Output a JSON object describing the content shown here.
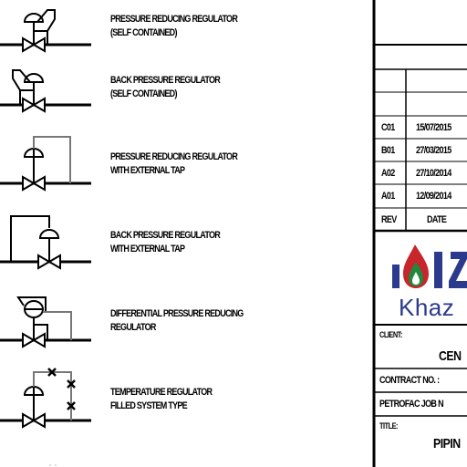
{
  "legend": {
    "items": [
      {
        "label": "PRESSURE REDUCING REGULATOR\n(SELF CONTAINED)"
      },
      {
        "label": "BACK PRESSURE REGULATOR\n(SELF CONTAINED)"
      },
      {
        "label": "PRESSURE REDUCING REGULATOR\nWITH EXTERNAL TAP"
      },
      {
        "label": "BACK PRESSURE REGULATOR\nWITH EXTERNAL TAP"
      },
      {
        "label": "DIFFERENTIAL PRESSURE REDUCING\nREGULATOR"
      },
      {
        "label": "TEMPERATURE REGULATOR\nFILLED SYSTEM TYPE"
      }
    ]
  },
  "title_block": {
    "revisions": [
      {
        "rev": "C01",
        "date": "15/07/2015"
      },
      {
        "rev": "B01",
        "date": "27/03/2015"
      },
      {
        "rev": "A02",
        "date": "27/10/2014"
      },
      {
        "rev": "A01",
        "date": "12/09/2014"
      }
    ],
    "rev_header": "REV",
    "date_header": "DATE",
    "logo_text": "Khaz",
    "client_label": "CLIENT:",
    "client_value": "CEN",
    "contract_label": "CONTRACT NO. :",
    "petrofac_label": "PETROFAC JOB N",
    "title_label": "TITLE:",
    "title_value": "PIPIN"
  },
  "colors": {
    "logo_blue": "#2b3a8c",
    "logo_red": "#c8252c",
    "logo_green": "#1f8a3c"
  }
}
